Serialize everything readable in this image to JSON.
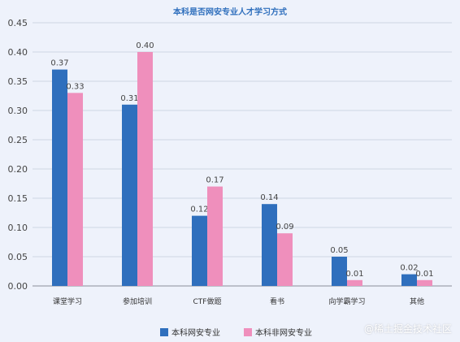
{
  "watermark": "@稀土掘金技术社区",
  "chart_data": {
    "type": "bar",
    "title": "本科是否网安专业人才学习方式",
    "categories": [
      "课堂学习",
      "参加培训",
      "CTF做题",
      "看书",
      "向学霸学习",
      "其他"
    ],
    "series": [
      {
        "name": "本科网安专业",
        "values": [
          0.37,
          0.31,
          0.12,
          0.14,
          0.05,
          0.02
        ],
        "color": "#2f6fbd"
      },
      {
        "name": "本科非网安专业",
        "values": [
          0.33,
          0.4,
          0.17,
          0.09,
          0.01,
          0.01
        ],
        "color": "#ef8fbc"
      }
    ],
    "value_labels": [
      [
        "0.37",
        "0.31",
        "0.12",
        "0.14",
        "0.05",
        "0.02"
      ],
      [
        "0.33",
        "0.40",
        "0.17",
        "0.09",
        "0.01",
        "0.01"
      ]
    ],
    "ylim": [
      0,
      0.45
    ],
    "yticks": [
      "0.00",
      "0.05",
      "0.10",
      "0.15",
      "0.20",
      "0.25",
      "0.30",
      "0.35",
      "0.40",
      "0.45"
    ],
    "xlabel": "",
    "ylabel": "",
    "grid": true,
    "legend": "bottom",
    "title_color": "#2f6fbd"
  }
}
